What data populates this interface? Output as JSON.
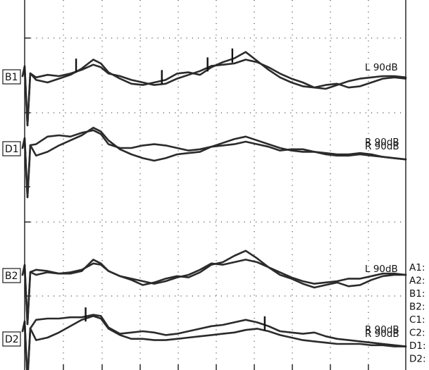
{
  "chart_data": {
    "type": "line",
    "title": "",
    "xlabel": "",
    "ylabel": "",
    "grid": true,
    "xlim": [
      0,
      10
    ],
    "panels": [
      {
        "id": "B1",
        "label": "B1",
        "right_labels": [
          "L 90dB"
        ],
        "series": [
          {
            "x": [
              0,
              0.3,
              0.6,
              0.9,
              1.2,
              1.5,
              1.8,
              2.0,
              2.2,
              2.5,
              2.8,
              3.1,
              3.4,
              3.7,
              4.0,
              4.3,
              4.6,
              4.9,
              5.2,
              5.5,
              5.8,
              6.1,
              6.4,
              6.7,
              7.0,
              7.3,
              7.6,
              7.9,
              8.2,
              8.5,
              8.8,
              9.1,
              9.4,
              9.7,
              10.0
            ],
            "y": [
              0,
              -0.3,
              -0.5,
              -0.2,
              0.1,
              0.6,
              1.3,
              1.0,
              0.3,
              -0.2,
              -0.6,
              -0.7,
              -0.5,
              -0.3,
              0.2,
              0.3,
              0.1,
              0.7,
              1.1,
              1.4,
              1.9,
              1.2,
              0.5,
              -0.1,
              -0.5,
              -0.8,
              -0.9,
              -0.7,
              -0.6,
              -0.9,
              -0.8,
              -0.5,
              -0.2,
              -0.1,
              -0.2
            ]
          },
          {
            "x": [
              0,
              0.3,
              0.6,
              0.9,
              1.2,
              1.5,
              1.8,
              2.0,
              2.2,
              2.5,
              2.8,
              3.1,
              3.4,
              3.7,
              4.0,
              4.3,
              4.6,
              4.9,
              5.2,
              5.5,
              5.8,
              6.1,
              6.4,
              6.7,
              7.0,
              7.3,
              7.6,
              7.9,
              8.2,
              8.5,
              8.8,
              9.1,
              9.4,
              9.7,
              10.0
            ],
            "y": [
              0,
              -0.1,
              0.1,
              0.0,
              0.2,
              0.5,
              0.9,
              0.7,
              0.2,
              0.0,
              -0.3,
              -0.5,
              -0.7,
              -0.6,
              -0.2,
              0.1,
              0.4,
              0.8,
              0.9,
              1.0,
              1.3,
              1.1,
              0.7,
              0.2,
              -0.2,
              -0.5,
              -0.9,
              -1.0,
              -0.7,
              -0.4,
              -0.2,
              -0.1,
              0.0,
              0.0,
              -0.1
            ]
          }
        ],
        "peak_markers_x": [
          1.35,
          3.6,
          4.8,
          5.45
        ]
      },
      {
        "id": "D1",
        "label": "D1",
        "right_labels": [
          "R 90dB",
          "R 90dB"
        ],
        "series": [
          {
            "x": [
              0,
              0.3,
              0.6,
              0.9,
              1.2,
              1.5,
              1.8,
              2.0,
              2.2,
              2.5,
              2.8,
              3.1,
              3.4,
              3.7,
              4.0,
              4.3,
              4.6,
              4.9,
              5.2,
              5.5,
              5.8,
              6.1,
              6.4,
              6.7,
              7.0,
              7.3,
              7.6,
              7.9,
              8.2,
              8.5,
              8.8,
              9.1,
              9.4,
              9.7,
              10.0
            ],
            "y": [
              0,
              0.3,
              0.9,
              1.0,
              0.9,
              1.2,
              1.4,
              1.1,
              0.3,
              0.0,
              0.0,
              0.2,
              0.3,
              0.2,
              0.0,
              -0.2,
              -0.1,
              0.1,
              0.2,
              0.3,
              0.5,
              0.3,
              0.1,
              -0.2,
              -0.1,
              -0.1,
              -0.3,
              -0.5,
              -0.6,
              -0.6,
              -0.5,
              -0.6,
              -0.7,
              -0.8,
              -0.9
            ]
          },
          {
            "x": [
              0,
              0.3,
              0.6,
              0.9,
              1.2,
              1.5,
              1.8,
              2.0,
              2.2,
              2.5,
              2.8,
              3.1,
              3.4,
              3.7,
              4.0,
              4.3,
              4.6,
              4.9,
              5.2,
              5.5,
              5.8,
              6.1,
              6.4,
              6.7,
              7.0,
              7.3,
              7.6,
              7.9,
              8.2,
              8.5,
              8.8,
              9.1,
              9.4,
              9.7,
              10.0
            ],
            "y": [
              0,
              -0.6,
              -0.3,
              0.2,
              0.6,
              1.0,
              1.6,
              1.3,
              0.6,
              -0.1,
              -0.5,
              -0.8,
              -1.0,
              -0.8,
              -0.5,
              -0.4,
              -0.3,
              0.1,
              0.4,
              0.7,
              0.9,
              0.6,
              0.3,
              0.0,
              -0.2,
              -0.3,
              -0.3,
              -0.4,
              -0.5,
              -0.5,
              -0.4,
              -0.5,
              -0.7,
              -0.8,
              -0.9
            ]
          }
        ],
        "peak_markers_x": []
      },
      {
        "id": "B2",
        "label": "B2",
        "right_labels": [
          "L 90dB"
        ],
        "series": [
          {
            "x": [
              0,
              0.3,
              0.6,
              0.9,
              1.2,
              1.5,
              1.8,
              2.0,
              2.2,
              2.5,
              2.8,
              3.1,
              3.4,
              3.7,
              4.0,
              4.3,
              4.6,
              4.9,
              5.2,
              5.5,
              5.8,
              6.1,
              6.4,
              6.7,
              7.0,
              7.3,
              7.6,
              7.9,
              8.2,
              8.5,
              8.8,
              9.1,
              9.4,
              9.7,
              10.0
            ],
            "y": [
              0,
              0.4,
              0.3,
              0.1,
              0.1,
              0.3,
              1.2,
              0.9,
              0.3,
              -0.1,
              -0.4,
              -0.8,
              -0.6,
              -0.3,
              -0.1,
              -0.2,
              0.2,
              0.8,
              1.0,
              1.5,
              1.9,
              1.3,
              0.6,
              0.0,
              -0.3,
              -0.7,
              -1.0,
              -0.8,
              -0.6,
              -0.9,
              -0.8,
              -0.4,
              -0.1,
              0.0,
              0.0
            ]
          },
          {
            "x": [
              0,
              0.3,
              0.6,
              0.9,
              1.2,
              1.5,
              1.8,
              2.0,
              2.2,
              2.5,
              2.8,
              3.1,
              3.4,
              3.7,
              4.0,
              4.3,
              4.6,
              4.9,
              5.2,
              5.5,
              5.8,
              6.1,
              6.4,
              6.7,
              7.0,
              7.3,
              7.6,
              7.9,
              8.2,
              8.5,
              8.8,
              9.1,
              9.4,
              9.7,
              10.0
            ],
            "y": [
              0,
              0.0,
              0.2,
              0.1,
              0.2,
              0.4,
              0.9,
              0.8,
              0.3,
              -0.1,
              -0.3,
              -0.5,
              -0.7,
              -0.5,
              -0.2,
              0.0,
              0.4,
              0.9,
              0.8,
              1.0,
              1.2,
              1.0,
              0.6,
              0.2,
              -0.2,
              -0.5,
              -0.7,
              -0.6,
              -0.5,
              -0.3,
              -0.3,
              -0.1,
              0.1,
              0.1,
              0.0
            ]
          }
        ],
        "peak_markers_x": []
      },
      {
        "id": "D2",
        "label": "D2",
        "right_labels": [
          "R 90dB",
          "R 90dB"
        ],
        "series": [
          {
            "x": [
              0,
              0.3,
              0.6,
              0.9,
              1.2,
              1.5,
              1.8,
              2.0,
              2.2,
              2.5,
              2.8,
              3.1,
              3.4,
              3.7,
              4.0,
              4.3,
              4.6,
              4.9,
              5.2,
              5.5,
              5.8,
              6.1,
              6.4,
              6.7,
              7.0,
              7.3,
              7.6,
              7.9,
              8.2,
              8.5,
              8.8,
              9.1,
              9.4,
              9.7,
              10.0
            ],
            "y": [
              0,
              0.9,
              1.0,
              1.0,
              1.1,
              1.1,
              1.3,
              1.2,
              0.3,
              -0.2,
              -0.1,
              0.0,
              -0.1,
              -0.3,
              -0.2,
              0.0,
              0.2,
              0.4,
              0.5,
              0.7,
              0.9,
              0.7,
              0.4,
              0.0,
              -0.1,
              -0.2,
              -0.1,
              -0.4,
              -0.6,
              -0.7,
              -0.8,
              -0.9,
              -1.0,
              -1.1,
              -1.2
            ]
          },
          {
            "x": [
              0,
              0.3,
              0.6,
              0.9,
              1.2,
              1.5,
              1.8,
              2.0,
              2.2,
              2.5,
              2.8,
              3.1,
              3.4,
              3.7,
              4.0,
              4.3,
              4.6,
              4.9,
              5.2,
              5.5,
              5.8,
              6.1,
              6.4,
              6.7,
              7.0,
              7.3,
              7.6,
              7.9,
              8.2,
              8.5,
              8.8,
              9.1,
              9.4,
              9.7,
              10.0
            ],
            "y": [
              0,
              -0.7,
              -0.5,
              -0.1,
              0.4,
              0.9,
              1.2,
              1.0,
              0.2,
              -0.3,
              -0.6,
              -0.6,
              -0.7,
              -0.7,
              -0.6,
              -0.5,
              -0.4,
              -0.3,
              -0.2,
              -0.1,
              0.1,
              0.2,
              0.0,
              -0.3,
              -0.5,
              -0.7,
              -0.8,
              -0.9,
              -1.0,
              -1.0,
              -1.0,
              -1.1,
              -1.1,
              -1.2,
              -1.2
            ]
          }
        ],
        "peak_markers_x": [
          1.6,
          6.3
        ]
      }
    ],
    "side_labels": [
      "A1:",
      "A2:",
      "B1:",
      "B2:",
      "C1:",
      "C2:",
      "D1:",
      "D2:"
    ]
  }
}
